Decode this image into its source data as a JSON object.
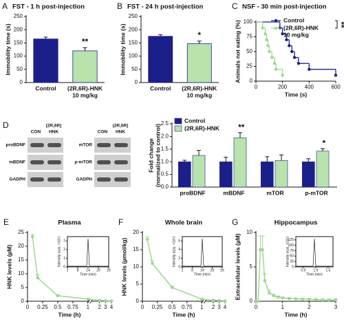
{
  "blots": {
    "label": "D",
    "panels": [
      {
        "header": [
          "CON",
          [
            "(2R,6R)",
            "HNK"
          ]
        ],
        "rows": [
          "proBDNF",
          "mBDNF",
          "GADPH"
        ]
      },
      {
        "header": [
          "CON",
          [
            "(2R,6R)",
            "HNK"
          ]
        ],
        "rows": [
          "mTOR",
          "p-mTOR",
          "GADPH"
        ]
      }
    ]
  },
  "chart_data": [
    {
      "type": "bar",
      "label": "A",
      "title": "FST - 1 h post-injection",
      "ylabel": "Immobility time (s)",
      "categories": [
        "Control",
        [
          "(2R,6R)-HNK",
          "10 mg/kg"
        ]
      ],
      "values": [
        165,
        120
      ],
      "errors": [
        7,
        12
      ],
      "colors": [
        "#1b1f8a",
        "#b8e3ad"
      ],
      "annotations": [
        null,
        "**"
      ],
      "ylim": [
        0,
        250
      ],
      "yticks": [
        0,
        50,
        100,
        150,
        200,
        250
      ]
    },
    {
      "type": "bar",
      "label": "B",
      "title": "FST - 24 h post-injection",
      "ylabel": "Immobility time (s)",
      "categories": [
        "Control",
        [
          "(2R,6R)-HNK",
          "10 mg/kg"
        ]
      ],
      "values": [
        175,
        147
      ],
      "errors": [
        6,
        10
      ],
      "colors": [
        "#1b1f8a",
        "#b8e3ad"
      ],
      "annotations": [
        null,
        "*"
      ],
      "ylim": [
        0,
        250
      ],
      "yticks": [
        0,
        50,
        100,
        150,
        200,
        250
      ]
    },
    {
      "type": "step",
      "label": "C",
      "title": "NSF - 30 min post-injection",
      "ylabel": "Animals not eating (%)",
      "xlabel": "Time (s)",
      "series": [
        {
          "name": "Control",
          "color": "#1b1f8a",
          "x": [
            0,
            180,
            200,
            230,
            250,
            270,
            290,
            320,
            400,
            600
          ],
          "values": [
            100,
            90,
            80,
            70,
            60,
            50,
            40,
            30,
            20,
            10
          ]
        },
        {
          "name": "(2R,6R)-HNK",
          "dose": "10 mg/kg",
          "color": "#9ed78f",
          "x": [
            0,
            50,
            70,
            80,
            90,
            100,
            120,
            140,
            150,
            200
          ],
          "values": [
            100,
            90,
            80,
            70,
            60,
            50,
            40,
            30,
            20,
            10
          ]
        }
      ],
      "annotation": "**",
      "xlim": [
        0,
        600
      ],
      "xticks": [
        0,
        200,
        400,
        600
      ],
      "ylim": [
        0,
        100
      ],
      "yticks": [
        0,
        25,
        50,
        75,
        100
      ]
    },
    {
      "type": "grouped_bar",
      "ylabel": [
        "Fold change",
        "(normalized to control)"
      ],
      "categories": [
        "proBDNF",
        "mBDNF",
        "mTOR",
        "p-mTOR"
      ],
      "series": [
        {
          "name": "Control",
          "color": "#1b1f8a",
          "values": [
            1,
            1,
            1,
            1
          ],
          "errors": [
            0.06,
            0.18,
            0.2,
            0.12
          ]
        },
        {
          "name": "(2R,6R)-HNK",
          "color": "#b8e3ad",
          "values": [
            1.25,
            1.95,
            1.05,
            1.42
          ],
          "errors": [
            0.2,
            0.2,
            0.22,
            0.1
          ]
        }
      ],
      "annotations": [
        null,
        "**",
        null,
        "*"
      ],
      "legend": "upper left",
      "ylim": [
        0,
        2.5
      ],
      "yticks": [
        {
          "value": 0,
          "label": "0.0"
        },
        0.5,
        {
          "value": 1,
          "label": "1.0"
        },
        1.5,
        {
          "value": 2,
          "label": "2.0"
        },
        2.5
      ]
    },
    {
      "type": "line",
      "label": "E",
      "title": "Plasma",
      "ylabel": "HNK levels (µM)",
      "xlabel": "Time (h)",
      "color": "#9ed78f",
      "x": [
        0.083,
        0.167,
        0.5,
        1,
        2,
        3,
        4
      ],
      "values": [
        23.5,
        8.5,
        2,
        0.8,
        0.3,
        0.2,
        0.1
      ],
      "errors": [
        0.8,
        1,
        0.3,
        0.1,
        0.05,
        0.05,
        0.05
      ],
      "x_broken_axis": true,
      "xlim": [
        0,
        4
      ],
      "xticks": [
        0,
        0.25,
        0.5,
        0.75,
        1,
        2,
        3,
        4
      ],
      "ylim": [
        0,
        25
      ],
      "yticks": [
        0,
        5,
        10,
        15,
        20,
        25
      ],
      "inset": {
        "xlabel": "Time (min)",
        "ylabel": "Intensity (cps, ×10⁵)",
        "xlim": [
          2,
          26
        ],
        "xticks": [
          2,
          8,
          14,
          20,
          26
        ],
        "ylim": [
          0,
          3.5
        ],
        "yticks": [
          0,
          1,
          2,
          3
        ]
      }
    },
    {
      "type": "line",
      "label": "F",
      "title": "Whole brain",
      "ylabel": "HNK levels (µmol/kg)",
      "xlabel": "Time (h)",
      "color": "#9ed78f",
      "x": [
        0.083,
        0.167,
        0.5,
        1,
        2,
        3,
        4
      ],
      "values": [
        18,
        11,
        4,
        0.6,
        0.3,
        0.2,
        0.1
      ],
      "errors": [
        0.8,
        0.8,
        0.4,
        0.1,
        0.05,
        0.05,
        0.05
      ],
      "x_broken_axis": true,
      "xlim": [
        0,
        4
      ],
      "xticks": [
        0,
        0.25,
        0.5,
        0.75,
        1,
        2,
        3,
        4
      ],
      "ylim": [
        0,
        20
      ],
      "yticks": [
        0,
        5,
        10,
        15,
        20
      ],
      "inset": {
        "xlabel": "Time (min)",
        "ylabel": "Intensity (cps, ×10⁵)",
        "xlim": [
          2,
          26
        ],
        "xticks": [
          2,
          8,
          14,
          20,
          26
        ],
        "ylim": [
          0,
          7
        ],
        "yticks": [
          0,
          2,
          4,
          6
        ]
      }
    },
    {
      "type": "line",
      "label": "G",
      "title": "Hippocampus",
      "ylabel": "Extracellular levels (µM)",
      "xlabel": "Time (h)",
      "color": "#9ed78f",
      "x": [
        0,
        0.083,
        0.167,
        0.25,
        0.333,
        0.5,
        0.667,
        0.833,
        1,
        1.25,
        1.5,
        1.75,
        2,
        2.25,
        2.5,
        2.75,
        3
      ],
      "values": [
        0,
        0,
        7.5,
        7.5,
        3,
        1.2,
        0.8,
        0.6,
        0.5,
        0.4,
        0.35,
        0.3,
        0.3,
        0.25,
        0.2,
        0.2,
        0.2
      ],
      "errors": [
        0,
        0,
        2,
        2,
        1,
        0.4,
        0.2,
        0.15,
        0.1,
        0.1,
        0.1,
        0.1,
        0.1,
        0.1,
        0.1,
        0.1,
        0.1
      ],
      "xlim": [
        0,
        3
      ],
      "xticks": [
        0,
        1,
        2,
        3
      ],
      "ylim": [
        0,
        10
      ],
      "yticks": [
        0,
        5,
        10
      ],
      "inset": {
        "xlabel": "Time (min)",
        "ylabel": "Intensity (cps, ×10⁵)",
        "xlim": [
          0.2,
          1.7
        ],
        "xticks": [
          0.5,
          {
            "value": 1,
            "label": "1.0"
          },
          1.5
        ],
        "ylim": [
          0,
          140
        ],
        "yticks": [
          0,
          25,
          50,
          75,
          100,
          125
        ]
      }
    }
  ]
}
